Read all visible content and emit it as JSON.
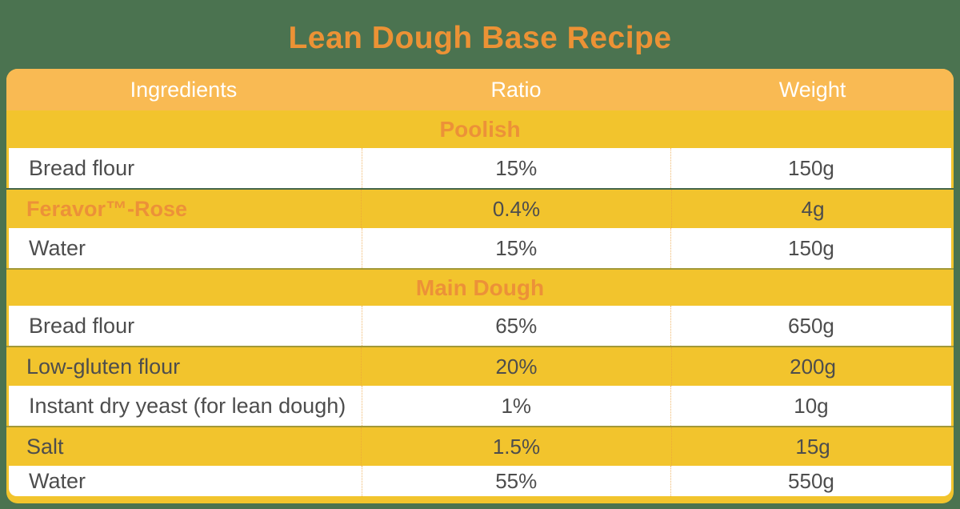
{
  "page": {
    "title": "Lean Dough Base Recipe"
  },
  "colors": {
    "background_green": "#4b7350",
    "header_bg": "#f9ba53",
    "row_yellow": "#f2c42d",
    "accent_orange": "#ec9138",
    "title_orange": "#ec9235",
    "text_dark": "#4d4d4d",
    "header_text": "#ffffff"
  },
  "table": {
    "columns": [
      "Ingredients",
      "Ratio",
      "Weight"
    ],
    "sections": [
      {
        "title": "Poolish",
        "rows": [
          {
            "name": "Bread flour",
            "ratio": "15%",
            "weight": "150g"
          },
          {
            "name": "Feravor™-Rose",
            "ratio": "0.4%",
            "weight": "4g"
          },
          {
            "name": "Water",
            "ratio": "15%",
            "weight": "150g"
          }
        ]
      },
      {
        "title": "Main Dough",
        "rows": [
          {
            "name": "Bread flour",
            "ratio": "65%",
            "weight": "650g"
          },
          {
            "name": "Low-gluten flour",
            "ratio": "20%",
            "weight": "200g"
          },
          {
            "name": "Instant dry yeast (for lean dough)",
            "ratio": "1%",
            "weight": "10g"
          },
          {
            "name": "Salt",
            "ratio": "1.5%",
            "weight": "15g"
          },
          {
            "name": "Water",
            "ratio": "55%",
            "weight": "550g"
          }
        ]
      }
    ]
  }
}
